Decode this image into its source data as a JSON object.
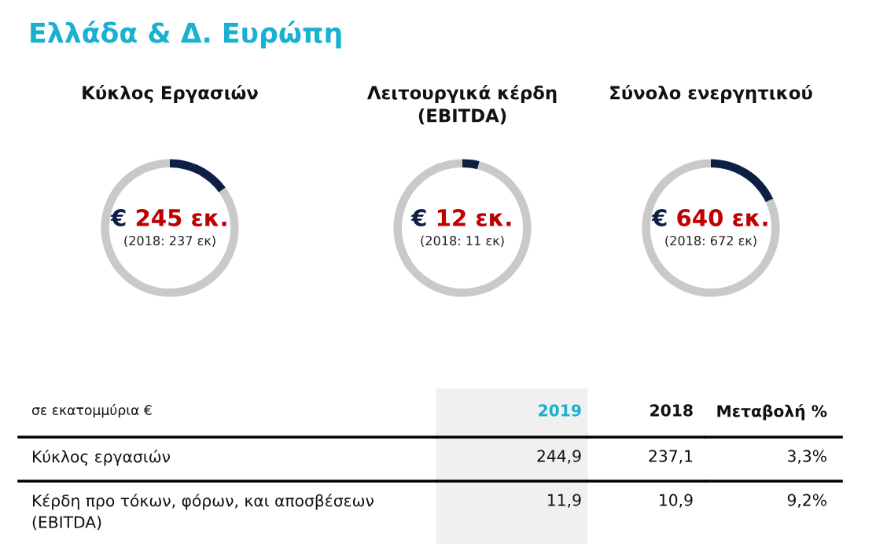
{
  "chart_data": [
    {
      "type": "other",
      "title": "Ελλάδα & Δ. Ευρώπη"
    },
    {
      "type": "donut",
      "title": "Κύκλος Εργασιών",
      "categories": [
        null,
        null
      ],
      "values": [
        15,
        85
      ],
      "colors": [
        "#0e1f45",
        "#c9c9c9"
      ],
      "annotations": [
        "€ 245 εκ.",
        "(2018: 237 εκ)"
      ]
    },
    {
      "type": "donut",
      "title": "Λειτουργικά κέρδη\n(EBITDA)",
      "categories": [
        null,
        null
      ],
      "values": [
        4,
        96
      ],
      "colors": [
        "#0e1f45",
        "#c9c9c9"
      ],
      "annotations": [
        "€ 12 εκ.",
        "(2018: 11 εκ)"
      ]
    },
    {
      "type": "donut",
      "title": "Σύνολο ενεργητικού",
      "categories": [
        null,
        null
      ],
      "values": [
        18,
        82
      ],
      "colors": [
        "#0e1f45",
        "#c9c9c9"
      ],
      "annotations": [
        "€ 640 εκ.",
        "(2018: 672 εκ)"
      ]
    },
    {
      "type": "other",
      "annotations": [
        "σε εκατομμύρια €",
        "2019",
        "2018",
        "Μεταβολή %",
        "Κύκλος εργασιών",
        "244,9",
        "237,1",
        "3,3%",
        "Κέρδη προ τόκων, φόρων, και αποσβέσεων\n(EBITDA)",
        "11,9",
        "10,9",
        "9,2%"
      ]
    }
  ]
}
